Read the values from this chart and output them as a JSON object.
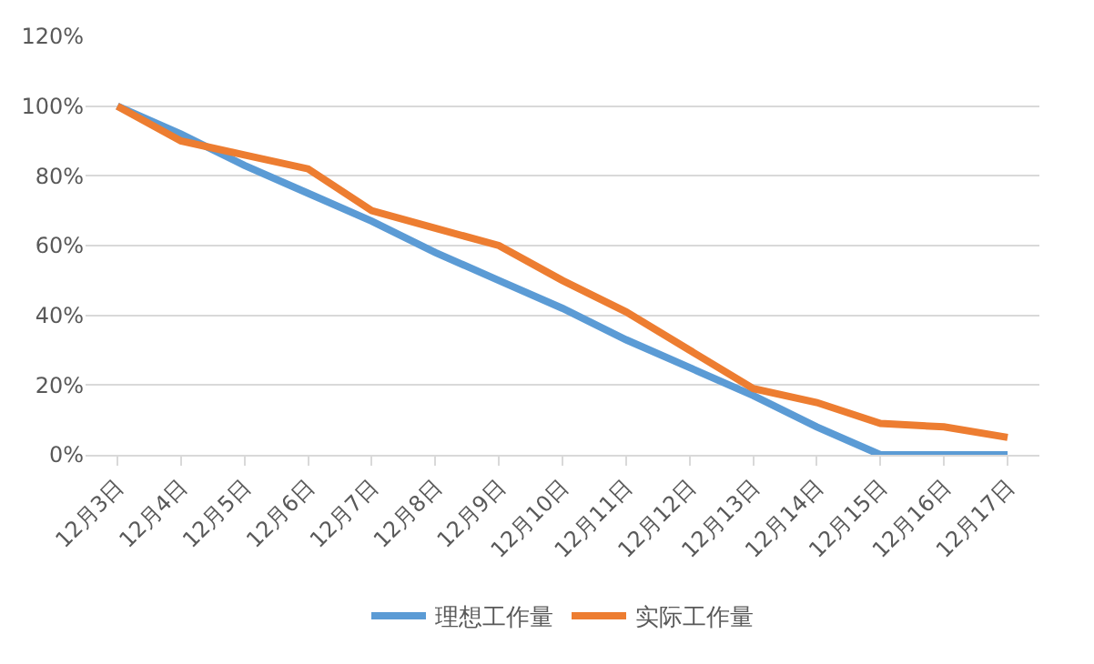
{
  "chart_data": {
    "type": "line",
    "categories": [
      "12月3日",
      "12月4日",
      "12月5日",
      "12月6日",
      "12月7日",
      "12月8日",
      "12月9日",
      "12月10日",
      "12月11日",
      "12月12日",
      "12月13日",
      "12月14日",
      "12月15日",
      "12月16日",
      "12月17日"
    ],
    "series": [
      {
        "name": "理想工作量",
        "color": "#5b9bd5",
        "values": [
          100,
          92,
          83,
          75,
          67,
          58,
          50,
          42,
          33,
          25,
          17,
          8,
          0,
          0,
          0
        ]
      },
      {
        "name": "实际工作量",
        "color": "#ed7d31",
        "values": [
          100,
          90,
          86,
          82,
          70,
          65,
          60,
          50,
          41,
          30,
          19,
          15,
          9,
          8,
          5
        ]
      }
    ],
    "ylim": [
      0,
      120
    ],
    "yticks": [
      {
        "value": 0,
        "label": "0%"
      },
      {
        "value": 20,
        "label": "20%"
      },
      {
        "value": 40,
        "label": "40%"
      },
      {
        "value": 60,
        "label": "60%"
      },
      {
        "value": 80,
        "label": "80%"
      },
      {
        "value": 100,
        "label": "100%"
      },
      {
        "value": 120,
        "label": "120%"
      }
    ],
    "grid": "y",
    "legend": "bottom",
    "marker": "none",
    "line_style": "solid"
  }
}
